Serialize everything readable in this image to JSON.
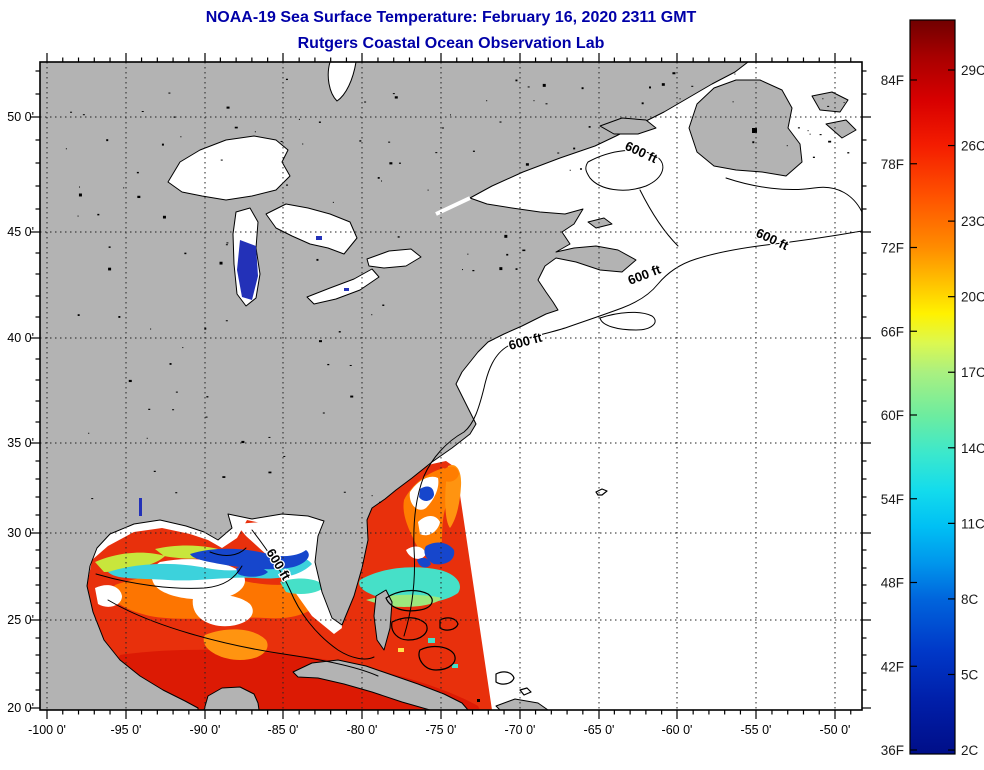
{
  "header": {
    "title_line1": "NOAA-19 Sea Surface Temperature:  February 16, 2020 2311 GMT",
    "title_line2": "Rutgers Coastal Ocean Observation Lab",
    "title_color": "#0000a8"
  },
  "map": {
    "land_color": "#b3b3b3",
    "ocean_color": "#ffffff",
    "coastline_color": "#000000",
    "contour_label": "600 ft",
    "depth_contour_value_ft": 600
  },
  "axes": {
    "x_labels": [
      "-100 0'",
      "-95 0'",
      "-90 0'",
      "-85 0'",
      "-80 0'",
      "-75 0'",
      "-70 0'",
      "-65 0'",
      "-60 0'",
      "-55 0'",
      "-50 0'"
    ],
    "y_labels": [
      "50 0'",
      "45 0'",
      "40 0'",
      "35 0'",
      "30 0'",
      "25 0'",
      "20 0'"
    ]
  },
  "colorbar": {
    "f_labels": [
      "84F",
      "78F",
      "72F",
      "66F",
      "60F",
      "54F",
      "48F",
      "42F",
      "36F"
    ],
    "c_labels": [
      "29C",
      "26C",
      "23C",
      "20C",
      "17C",
      "14C",
      "11C",
      "8C",
      "5C",
      "2C"
    ],
    "scale": {
      "min_c": 2,
      "max_c": 31,
      "min_f": 36,
      "max_f": 88
    },
    "gradient": [
      {
        "pct": 0,
        "color": "#700000"
      },
      {
        "pct": 5,
        "color": "#a80000"
      },
      {
        "pct": 11,
        "color": "#d80000"
      },
      {
        "pct": 17,
        "color": "#f41c00"
      },
      {
        "pct": 24,
        "color": "#ff5200"
      },
      {
        "pct": 31,
        "color": "#ff8c00"
      },
      {
        "pct": 36,
        "color": "#ffc400"
      },
      {
        "pct": 40,
        "color": "#fff200"
      },
      {
        "pct": 44,
        "color": "#dcf850"
      },
      {
        "pct": 48,
        "color": "#aaf080"
      },
      {
        "pct": 54,
        "color": "#6ceca0"
      },
      {
        "pct": 59,
        "color": "#3ce8cc"
      },
      {
        "pct": 64,
        "color": "#14dcec"
      },
      {
        "pct": 69,
        "color": "#00c0f4"
      },
      {
        "pct": 74,
        "color": "#0096ec"
      },
      {
        "pct": 79,
        "color": "#0064dc"
      },
      {
        "pct": 86,
        "color": "#0038c8"
      },
      {
        "pct": 93,
        "color": "#001ea8"
      },
      {
        "pct": 100,
        "color": "#000e88"
      }
    ]
  },
  "sst_palette": {
    "warm_red": "#e8300c",
    "deep_red": "#dc1a04",
    "orange": "#ff7d00",
    "orange_light": "#ff9410",
    "yellow": "#ffe14a",
    "yellow_green": "#c8e63c",
    "green": "#9ce87c",
    "cyan": "#3cd2dc",
    "teal": "#46e0c8",
    "dark_blue": "#1646cc",
    "lake_blue": "#2331b8"
  }
}
